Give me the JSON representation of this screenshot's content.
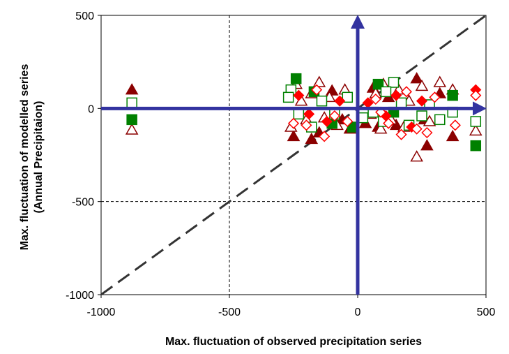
{
  "chart_data": {
    "type": "scatter",
    "title": "",
    "xlabel": "Max. fluctuation of observed precipitation series",
    "ylabel": [
      "Max. fluctuation of modelled series",
      "(Annual Precipitaion)"
    ],
    "xlim": [
      -1000,
      500
    ],
    "ylim": [
      -1000,
      500
    ],
    "x_ticks": [
      -1000,
      -500,
      0,
      500
    ],
    "y_ticks": [
      -1000,
      -500,
      0,
      500
    ],
    "x_tick_labels": [
      "-1000",
      "-500",
      "0",
      "500"
    ],
    "y_tick_labels": [
      "-1000",
      "-500",
      "0",
      "500"
    ],
    "grid": {
      "dashed_vertical_at": -500,
      "dashed_horizontal_at": -500
    },
    "reference_line": {
      "type": "1:1 diagonal",
      "from": [
        -1000,
        -1000
      ],
      "to": [
        500,
        500
      ],
      "style": "dashed"
    },
    "arrows": [
      {
        "from": [
          -1000,
          0
        ],
        "to": [
          500,
          0
        ],
        "color": "#3333a0"
      },
      {
        "from": [
          0,
          -1000
        ],
        "to": [
          0,
          500
        ],
        "color": "#3333a0"
      }
    ],
    "legend": "none",
    "colors": {
      "dark_red": "#8b0000",
      "red": "#ff0000",
      "green": "#008000",
      "arrow_blue": "#3333a0"
    },
    "series": [
      {
        "marker": "triangle-filled",
        "color": "#8b0000",
        "points": [
          [
            -880,
            100
          ],
          [
            -250,
            -150
          ],
          [
            -180,
            -165
          ],
          [
            -150,
            -130
          ],
          [
            -100,
            95
          ],
          [
            -60,
            -60
          ],
          [
            60,
            110
          ],
          [
            80,
            -100
          ],
          [
            120,
            60
          ],
          [
            150,
            -90
          ],
          [
            230,
            160
          ],
          [
            260,
            -60
          ],
          [
            270,
            -200
          ],
          [
            320,
            80
          ],
          [
            370,
            -150
          ],
          [
            -30,
            -110
          ],
          [
            30,
            -80
          ]
        ]
      },
      {
        "marker": "triangle-open",
        "color": "#8b0000",
        "points": [
          [
            -880,
            -115
          ],
          [
            -260,
            -100
          ],
          [
            -240,
            130
          ],
          [
            -200,
            -60
          ],
          [
            -180,
            80
          ],
          [
            -150,
            140
          ],
          [
            -130,
            -50
          ],
          [
            -110,
            60
          ],
          [
            -80,
            -90
          ],
          [
            -50,
            100
          ],
          [
            50,
            -30
          ],
          [
            70,
            80
          ],
          [
            100,
            130
          ],
          [
            130,
            -60
          ],
          [
            160,
            100
          ],
          [
            180,
            -100
          ],
          [
            200,
            40
          ],
          [
            230,
            -260
          ],
          [
            250,
            120
          ],
          [
            280,
            -70
          ],
          [
            320,
            140
          ],
          [
            370,
            100
          ],
          [
            460,
            -120
          ],
          [
            -220,
            40
          ],
          [
            90,
            -110
          ]
        ]
      },
      {
        "marker": "square-filled",
        "color": "#008000",
        "points": [
          [
            -880,
            -60
          ],
          [
            -240,
            160
          ],
          [
            -170,
            90
          ],
          [
            -100,
            -80
          ],
          [
            80,
            130
          ],
          [
            140,
            -20
          ],
          [
            370,
            70
          ],
          [
            460,
            -200
          ],
          [
            -20,
            -100
          ]
        ]
      },
      {
        "marker": "square-open",
        "color": "#008000",
        "points": [
          [
            -880,
            30
          ],
          [
            -260,
            100
          ],
          [
            -230,
            -30
          ],
          [
            -180,
            -100
          ],
          [
            -140,
            40
          ],
          [
            -90,
            -30
          ],
          [
            -40,
            60
          ],
          [
            20,
            -50
          ],
          [
            60,
            -20
          ],
          [
            100,
            -70
          ],
          [
            140,
            140
          ],
          [
            170,
            30
          ],
          [
            200,
            -90
          ],
          [
            250,
            -40
          ],
          [
            280,
            20
          ],
          [
            320,
            -60
          ],
          [
            370,
            -20
          ],
          [
            460,
            -70
          ],
          [
            -270,
            60
          ],
          [
            110,
            90
          ]
        ]
      },
      {
        "marker": "diamond-filled",
        "color": "#ff0000",
        "points": [
          [
            -230,
            70
          ],
          [
            -190,
            -30
          ],
          [
            -120,
            -70
          ],
          [
            -70,
            40
          ],
          [
            40,
            30
          ],
          [
            110,
            -40
          ],
          [
            150,
            70
          ],
          [
            210,
            -100
          ],
          [
            250,
            40
          ],
          [
            460,
            100
          ]
        ]
      },
      {
        "marker": "diamond-open",
        "color": "#ff0000",
        "points": [
          [
            -250,
            -80
          ],
          [
            -200,
            -90
          ],
          [
            -160,
            100
          ],
          [
            -130,
            -150
          ],
          [
            -90,
            -40
          ],
          [
            -40,
            -70
          ],
          [
            70,
            50
          ],
          [
            120,
            -80
          ],
          [
            170,
            -140
          ],
          [
            190,
            90
          ],
          [
            230,
            -110
          ],
          [
            270,
            -130
          ],
          [
            300,
            60
          ],
          [
            380,
            -90
          ],
          [
            460,
            70
          ],
          [
            90,
            -20
          ]
        ]
      }
    ]
  }
}
